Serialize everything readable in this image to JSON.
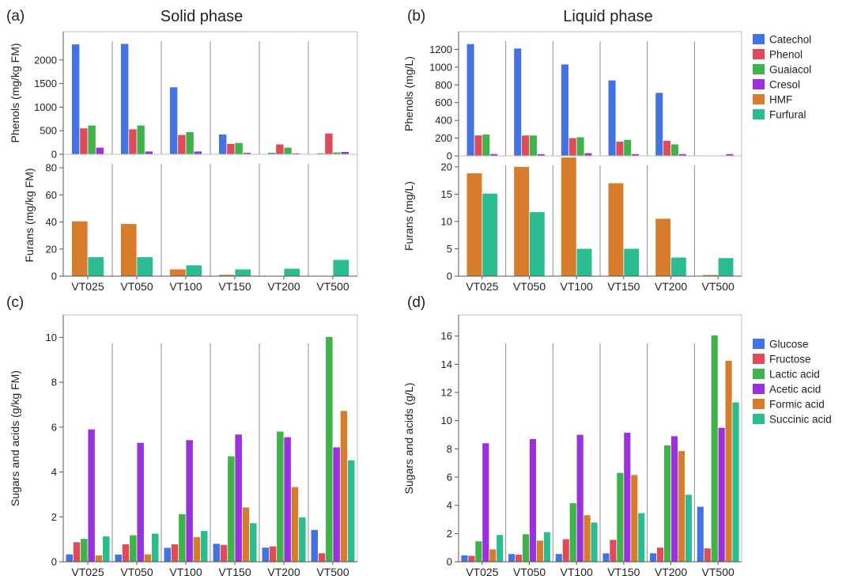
{
  "panels": {
    "a": {
      "label": "(a)",
      "title": "Solid phase"
    },
    "b": {
      "label": "(b)",
      "title": "Liquid phase"
    },
    "c": {
      "label": "(c)",
      "title": ""
    },
    "d": {
      "label": "(d)",
      "title": ""
    }
  },
  "categories": [
    "VT025",
    "VT050",
    "VT100",
    "VT150",
    "VT200",
    "VT500"
  ],
  "colors": {
    "Catechol": "#4472e2",
    "Phenol": "#de4c5a",
    "Guaiacol": "#3fb34a",
    "Cresol": "#9b30dd",
    "HMF": "#d67c2b",
    "Furfural": "#2bbd91",
    "Glucose": "#4472e2",
    "Fructose": "#de4c5a",
    "Lactic acid": "#3fb34a",
    "Acetic acid": "#9b30dd",
    "Formic acid": "#d67c2b",
    "Succinic acid": "#2bbd91"
  },
  "legends": {
    "top": [
      "Catechol",
      "Phenol",
      "Guaiacol",
      "Cresol",
      "HMF",
      "Furfural"
    ],
    "bottom": [
      "Glucose",
      "Fructose",
      "Lactic acid",
      "Acetic acid",
      "Formic acid",
      "Succinic acid"
    ]
  },
  "chart_data": [
    {
      "id": "a-phenols",
      "type": "bar",
      "ylabel": "Phenols (mg/kg FM)",
      "ylim": [
        0,
        2600
      ],
      "yticks": [
        0,
        500,
        1000,
        1500,
        2000
      ],
      "categories": [
        "VT025",
        "VT050",
        "VT100",
        "VT150",
        "VT200",
        "VT500"
      ],
      "series": [
        {
          "name": "Catechol",
          "values": [
            2330,
            2340,
            1420,
            420,
            30,
            20
          ]
        },
        {
          "name": "Phenol",
          "values": [
            550,
            530,
            410,
            220,
            210,
            440
          ]
        },
        {
          "name": "Guaiacol",
          "values": [
            610,
            610,
            470,
            240,
            140,
            40
          ]
        },
        {
          "name": "Cresol",
          "values": [
            140,
            60,
            60,
            30,
            20,
            50
          ]
        }
      ]
    },
    {
      "id": "a-furans",
      "type": "bar",
      "ylabel": "Furans (mg/kg FM)",
      "ylim": [
        0,
        90
      ],
      "yticks": [
        0,
        20,
        40,
        60,
        80
      ],
      "categories": [
        "VT025",
        "VT050",
        "VT100",
        "VT150",
        "VT200",
        "VT500"
      ],
      "series": [
        {
          "name": "HMF",
          "values": [
            40.5,
            38.5,
            5,
            1,
            0,
            0
          ]
        },
        {
          "name": "Furfural",
          "values": [
            14,
            14,
            8,
            5,
            5.5,
            12
          ]
        }
      ]
    },
    {
      "id": "b-phenols",
      "type": "bar",
      "ylabel": "Phenols (mg/L)",
      "ylim": [
        0,
        1400
      ],
      "yticks": [
        0,
        200,
        400,
        600,
        800,
        1000,
        1200
      ],
      "categories": [
        "VT025",
        "VT050",
        "VT100",
        "VT150",
        "VT200",
        "VT500"
      ],
      "series": [
        {
          "name": "Catechol",
          "values": [
            1260,
            1210,
            1030,
            850,
            710,
            5
          ]
        },
        {
          "name": "Phenol",
          "values": [
            230,
            230,
            200,
            160,
            170,
            5
          ]
        },
        {
          "name": "Guaiacol",
          "values": [
            240,
            230,
            210,
            180,
            130,
            5
          ]
        },
        {
          "name": "Cresol",
          "values": [
            20,
            20,
            30,
            20,
            20,
            20
          ]
        }
      ]
    },
    {
      "id": "b-furans",
      "type": "bar",
      "ylabel": "Furans (mg/L)",
      "ylim": [
        0,
        22
      ],
      "yticks": [
        0,
        5,
        10,
        15,
        20
      ],
      "categories": [
        "VT025",
        "VT050",
        "VT100",
        "VT150",
        "VT200",
        "VT500"
      ],
      "series": [
        {
          "name": "HMF",
          "values": [
            18.8,
            20,
            21.7,
            17,
            10.5,
            0.2
          ]
        },
        {
          "name": "Furfural",
          "values": [
            15.1,
            11.7,
            5,
            5,
            3.4,
            3.3
          ]
        }
      ]
    },
    {
      "id": "c-sugars",
      "type": "bar",
      "ylabel": "Sugars and acids (g/kg FM)",
      "ylim": [
        0,
        11
      ],
      "yticks": [
        0,
        2,
        4,
        6,
        8,
        10
      ],
      "categories": [
        "VT025",
        "VT050",
        "VT100",
        "VT150",
        "VT200",
        "VT500"
      ],
      "series": [
        {
          "name": "Glucose",
          "values": [
            0.33,
            0.32,
            0.62,
            0.8,
            0.63,
            1.42
          ]
        },
        {
          "name": "Fructose",
          "values": [
            0.87,
            0.78,
            0.78,
            0.75,
            0.68,
            0.38
          ]
        },
        {
          "name": "Lactic acid",
          "values": [
            1.02,
            1.18,
            2.12,
            4.7,
            5.8,
            10.02
          ]
        },
        {
          "name": "Acetic acid",
          "values": [
            5.9,
            5.3,
            5.42,
            5.67,
            5.55,
            5.1
          ]
        },
        {
          "name": "Formic acid",
          "values": [
            0.28,
            0.33,
            1.1,
            2.42,
            3.33,
            6.72
          ]
        },
        {
          "name": "Succinic acid",
          "values": [
            1.13,
            1.25,
            1.37,
            1.72,
            1.98,
            4.52
          ]
        }
      ]
    },
    {
      "id": "d-sugars",
      "type": "bar",
      "ylabel": "Sugars and acids (g/L)",
      "ylim": [
        0,
        17.5
      ],
      "yticks": [
        0,
        2,
        4,
        6,
        8,
        10,
        12,
        14,
        16
      ],
      "categories": [
        "VT025",
        "VT050",
        "VT100",
        "VT150",
        "VT200",
        "VT500"
      ],
      "series": [
        {
          "name": "Glucose",
          "values": [
            0.45,
            0.55,
            0.55,
            0.6,
            0.6,
            3.9
          ]
        },
        {
          "name": "Fructose",
          "values": [
            0.42,
            0.5,
            1.6,
            1.55,
            1.0,
            0.95
          ]
        },
        {
          "name": "Lactic acid",
          "values": [
            1.45,
            1.95,
            4.15,
            6.3,
            8.25,
            16.05
          ]
        },
        {
          "name": "Acetic acid",
          "values": [
            8.4,
            8.7,
            9.0,
            9.15,
            8.9,
            9.5
          ]
        },
        {
          "name": "Formic acid",
          "values": [
            0.88,
            1.5,
            3.3,
            6.15,
            7.85,
            14.25
          ]
        },
        {
          "name": "Succinic acid",
          "values": [
            1.9,
            2.1,
            2.78,
            3.45,
            4.75,
            11.3
          ]
        }
      ]
    }
  ]
}
